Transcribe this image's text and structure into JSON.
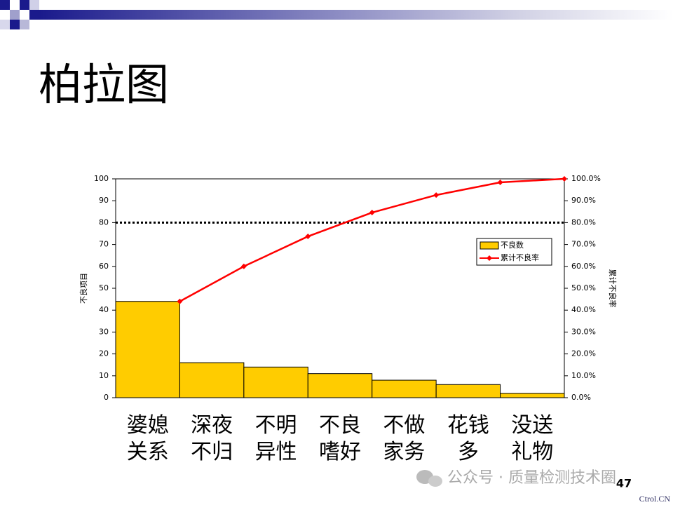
{
  "chart_data": {
    "type": "pareto",
    "title": "柏拉图",
    "categories": [
      "婆媳关系",
      "深夜不归",
      "不明异性",
      "不良嗜好",
      "不做家务",
      "花钱多",
      "没送礼物"
    ],
    "series": [
      {
        "name": "不良数",
        "type": "bar",
        "color": "#ffcc00",
        "values": [
          44,
          16,
          14,
          11,
          8,
          6,
          2
        ]
      },
      {
        "name": "累计不良率",
        "type": "line",
        "axis": "y2",
        "color": "#ff0000",
        "values": [
          44,
          60,
          73.7,
          84.6,
          92.6,
          98.4,
          100
        ]
      }
    ],
    "ylabel": "不良项目",
    "y2label": "累计不良率",
    "ylim": [
      0,
      100
    ],
    "yticks": [
      0,
      10,
      20,
      30,
      40,
      50,
      60,
      70,
      80,
      90,
      100
    ],
    "y2lim": [
      0,
      100
    ],
    "y2ticks": [
      {
        "value": 0,
        "label": "0.0%"
      },
      {
        "value": 10,
        "label": "10.0%"
      },
      {
        "value": 20,
        "label": "20.0%"
      },
      {
        "value": 30,
        "label": "30.0%"
      },
      {
        "value": 40,
        "label": "40.0%"
      },
      {
        "value": 50,
        "label": "50.0%"
      },
      {
        "value": 60,
        "label": "60.0%"
      },
      {
        "value": 70,
        "label": "70.0%"
      },
      {
        "value": 80,
        "label": "80.0%"
      },
      {
        "value": 90,
        "label": "90.0%"
      },
      {
        "value": 100,
        "label": "100.0%"
      }
    ],
    "reference_line": {
      "axis": "y2",
      "value": 80,
      "color": "#000000"
    },
    "legend": "upper right"
  },
  "slide": {
    "page_number": "47",
    "watermark": "公众号 · 质量检测技术圈",
    "source": "Ctrol.CN"
  }
}
